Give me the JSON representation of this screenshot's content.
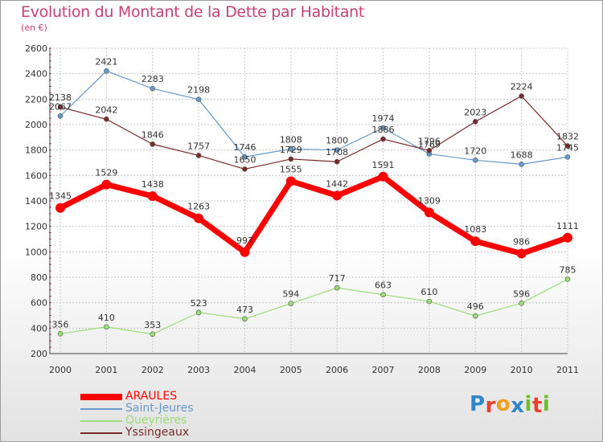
{
  "header": {
    "title": "Evolution du Montant de la Dette par Habitant",
    "subtitle": "(en €)"
  },
  "logo": {
    "text": "Proxiti",
    "letter_colors": [
      "#2f86c9",
      "#e8412c",
      "#f0a020",
      "#2f86c9",
      "#6bbf2e",
      "#e8412c",
      "#6bbf2e"
    ]
  },
  "chart_data": {
    "type": "line",
    "title": "Evolution du Montant de la Dette par Habitant",
    "subtitle": "(en €)",
    "x": [
      "2000",
      "2001",
      "2002",
      "2003",
      "2004",
      "2005",
      "2006",
      "2007",
      "2008",
      "2009",
      "2010",
      "2011"
    ],
    "ylim": [
      200,
      2600
    ],
    "yticks": [
      200,
      400,
      600,
      800,
      1000,
      1200,
      1400,
      1600,
      1800,
      2000,
      2200,
      2400,
      2600
    ],
    "grid": true,
    "legend_position": "bottom-left",
    "series": [
      {
        "name": "ARAULES",
        "color": "#ff0000",
        "emphasis": true,
        "values": [
          1345,
          1529,
          1438,
          1263,
          997,
          1555,
          1442,
          1591,
          1309,
          1083,
          986,
          1111
        ]
      },
      {
        "name": "Saint-Jeures",
        "color": "#6699cc",
        "values": [
          2067,
          2421,
          2283,
          2198,
          1746,
          1808,
          1800,
          1974,
          1769,
          1720,
          1688,
          1745
        ]
      },
      {
        "name": "Queyrières",
        "color": "#99dd77",
        "values": [
          356,
          410,
          353,
          523,
          473,
          594,
          717,
          663,
          610,
          496,
          596,
          785
        ]
      },
      {
        "name": "Yssingeaux",
        "color": "#7a2a2a",
        "values": [
          2138,
          2042,
          1846,
          1757,
          1650,
          1729,
          1708,
          1886,
          1796,
          2023,
          2224,
          1832
        ]
      }
    ]
  }
}
